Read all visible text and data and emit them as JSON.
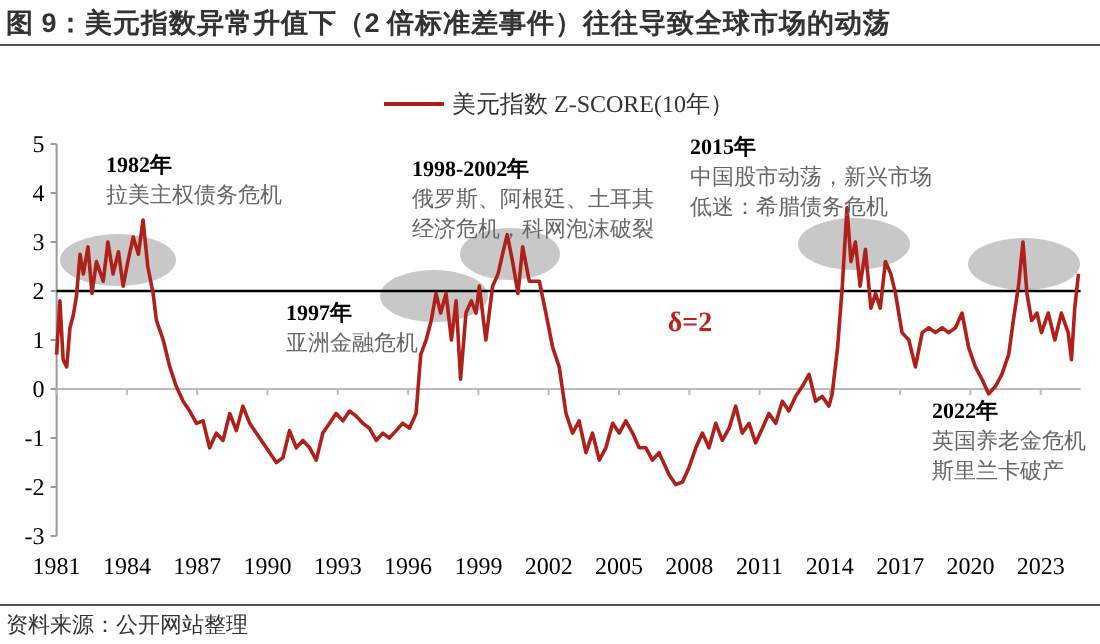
{
  "chart_data": {
    "type": "line",
    "title": "图 9：美元指数异常升值下（2 倍标准差事件）往往导致全球市场的动荡",
    "x": [
      1981.0,
      1981.14,
      1981.28,
      1981.43,
      1981.57,
      1981.71,
      1981.85,
      1982.0,
      1982.14,
      1982.34,
      1982.51,
      1982.7,
      1982.99,
      1983.19,
      1983.41,
      1983.64,
      1983.84,
      1984.04,
      1984.27,
      1984.49,
      1984.69,
      1984.89,
      1985.12,
      1985.26,
      1985.55,
      1985.83,
      1986.11,
      1986.4,
      1986.68,
      1986.97,
      1987.25,
      1987.53,
      1987.82,
      1988.1,
      1988.39,
      1988.67,
      1988.95,
      1989.24,
      1989.52,
      1989.95,
      1990.38,
      1990.66,
      1990.94,
      1991.23,
      1991.51,
      1991.8,
      1992.08,
      1992.36,
      1992.65,
      1992.93,
      1993.22,
      1993.5,
      1993.78,
      1994.07,
      1994.35,
      1994.64,
      1994.92,
      1995.2,
      1995.49,
      1995.77,
      1996.06,
      1996.34,
      1996.54,
      1996.77,
      1996.99,
      1997.19,
      1997.39,
      1997.62,
      1997.85,
      1998.05,
      1998.24,
      1998.47,
      1998.7,
      1998.9,
      1999.04,
      1999.32,
      1999.61,
      1999.84,
      2000.03,
      2000.23,
      2000.46,
      2000.69,
      2000.89,
      2001.17,
      2001.45,
      2001.6,
      2001.88,
      2002.17,
      2002.45,
      2002.74,
      2003.02,
      2003.3,
      2003.59,
      2003.87,
      2004.16,
      2004.44,
      2004.73,
      2005.01,
      2005.29,
      2005.58,
      2005.86,
      2006.15,
      2006.43,
      2006.71,
      2007.14,
      2007.42,
      2007.71,
      2007.99,
      2008.28,
      2008.56,
      2008.84,
      2009.13,
      2009.41,
      2009.7,
      2009.98,
      2010.26,
      2010.55,
      2010.83,
      2011.12,
      2011.4,
      2011.69,
      2011.97,
      2012.25,
      2012.54,
      2012.82,
      2013.11,
      2013.39,
      2013.67,
      2013.96,
      2014.1,
      2014.33,
      2014.53,
      2014.73,
      2014.9,
      2015.09,
      2015.29,
      2015.52,
      2015.75,
      2015.95,
      2016.15,
      2016.37,
      2016.6,
      2016.8,
      2017.08,
      2017.37,
      2017.65,
      2017.94,
      2018.22,
      2018.5,
      2018.79,
      2019.07,
      2019.36,
      2019.64,
      2019.92,
      2020.21,
      2020.49,
      2020.78,
      2021.06,
      2021.34,
      2021.63,
      2021.83,
      2022.05,
      2022.24,
      2022.41,
      2022.61,
      2022.84,
      2023.03,
      2023.32,
      2023.6,
      2023.88,
      2024.17,
      2024.31,
      2024.45,
      2024.61
    ],
    "series": [
      {
        "name": "美元指数 Z-SCORE(10年）",
        "color": "#b0201a",
        "values": [
          0.7,
          1.8,
          0.6,
          0.45,
          1.25,
          1.5,
          1.9,
          2.75,
          2.35,
          2.9,
          1.95,
          2.6,
          2.2,
          3.0,
          2.35,
          2.8,
          2.1,
          2.6,
          3.1,
          2.75,
          3.45,
          2.5,
          1.95,
          1.4,
          1.0,
          0.45,
          0.05,
          -0.25,
          -0.45,
          -0.7,
          -0.65,
          -1.2,
          -0.9,
          -1.05,
          -0.5,
          -0.85,
          -0.35,
          -0.7,
          -0.9,
          -1.2,
          -1.5,
          -1.4,
          -0.85,
          -1.2,
          -1.05,
          -1.2,
          -1.45,
          -0.9,
          -0.7,
          -0.5,
          -0.65,
          -0.45,
          -0.55,
          -0.7,
          -0.8,
          -1.05,
          -0.9,
          -1.0,
          -0.85,
          -0.7,
          -0.8,
          -0.5,
          0.7,
          1.0,
          1.4,
          1.95,
          1.55,
          1.95,
          1.0,
          1.8,
          0.2,
          1.55,
          1.8,
          1.55,
          2.1,
          1.0,
          2.1,
          2.35,
          2.75,
          3.15,
          2.6,
          1.95,
          2.9,
          2.2,
          2.2,
          2.2,
          1.55,
          0.85,
          0.45,
          -0.5,
          -0.9,
          -0.65,
          -1.3,
          -0.9,
          -1.45,
          -1.2,
          -0.7,
          -0.9,
          -0.65,
          -0.9,
          -1.2,
          -1.2,
          -1.45,
          -1.3,
          -1.75,
          -1.95,
          -1.9,
          -1.6,
          -1.2,
          -0.9,
          -1.2,
          -0.7,
          -1.05,
          -0.8,
          -0.35,
          -0.9,
          -0.7,
          -1.1,
          -0.8,
          -0.5,
          -0.7,
          -0.25,
          -0.45,
          -0.15,
          0.05,
          0.3,
          -0.25,
          -0.15,
          -0.35,
          -0.1,
          0.85,
          2.1,
          3.7,
          2.6,
          3.0,
          2.1,
          2.85,
          1.65,
          1.95,
          1.65,
          2.6,
          2.35,
          1.95,
          1.15,
          1.0,
          0.45,
          1.15,
          1.25,
          1.15,
          1.25,
          1.15,
          1.25,
          1.55,
          0.85,
          0.45,
          0.2,
          -0.1,
          0.05,
          0.3,
          0.7,
          1.4,
          2.1,
          3.0,
          1.95,
          1.4,
          1.55,
          1.15,
          1.55,
          1.0,
          1.55,
          1.15,
          0.6,
          1.65,
          2.35
        ]
      }
    ],
    "xlim": [
      1981,
      2024.7
    ],
    "xticks": [
      1981,
      1984,
      1987,
      1990,
      1993,
      1996,
      1999,
      2002,
      2005,
      2008,
      2011,
      2014,
      2017,
      2020,
      2023
    ],
    "ylim": [
      -3,
      5
    ],
    "yticks": [
      -3,
      -2,
      -1,
      0,
      1,
      2,
      3,
      4,
      5
    ],
    "ref_lines": [
      {
        "axis": "y",
        "value": 2,
        "label": "δ=2",
        "color": "#000000"
      }
    ],
    "legend": "top",
    "grid": false,
    "annotations": [
      "1982年",
      "拉美主权债务危机",
      "1998-2002年",
      "俄罗斯、阿根廷、土耳其",
      "经济危机，科网泡沫破裂",
      "1997年",
      "亚洲金融危机",
      "2015年",
      "中国股市动荡，新兴市场",
      "低迷：希腊债务危机",
      "2022年",
      "英国养老金危机",
      "斯里兰卡破产",
      "资料来源：公开网站整理"
    ]
  }
}
